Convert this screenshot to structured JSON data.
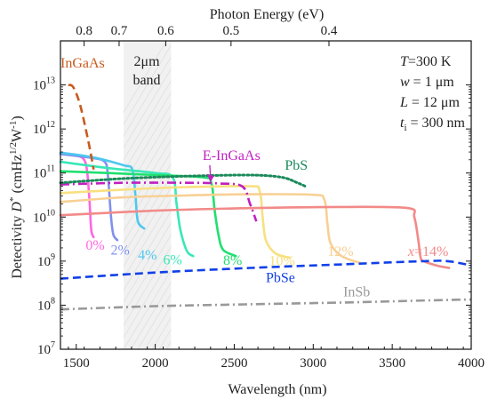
{
  "chart_data": {
    "type": "line",
    "xlabel": "Wavelength (nm)",
    "ylabel": "Detectivity D* (cmHz^1/2W^-1)",
    "ylabel_parts": {
      "pre": "Detectivity ",
      "d": "D",
      "star": "*",
      "mid": " (cmHz",
      "sup1": "1/2",
      "w": "W",
      "sup2": "-1",
      "close": ")"
    },
    "top_xlabel": "Photon Energy (eV)",
    "xlim": [
      1400,
      4000
    ],
    "ylim": [
      10000000.0,
      100000000000000.0
    ],
    "yscale": "log",
    "x_ticks": [
      1500,
      2000,
      2500,
      3000,
      3500,
      4000
    ],
    "x_tick_labels": [
      "1500",
      "2000",
      "2500",
      "3000",
      "3500",
      "4000"
    ],
    "y_ticks": [
      10000000.0,
      100000000.0,
      1000000000.0,
      10000000000.0,
      100000000000.0,
      1000000000000.0,
      10000000000000.0
    ],
    "y_tick_labels": [
      {
        "base": "10",
        "exp": "7"
      },
      {
        "base": "10",
        "exp": "8"
      },
      {
        "base": "10",
        "exp": "9"
      },
      {
        "base": "10",
        "exp": "10"
      },
      {
        "base": "10",
        "exp": "11"
      },
      {
        "base": "10",
        "exp": "12"
      },
      {
        "base": "10",
        "exp": "13"
      }
    ],
    "top_ticks_ev": [
      0.8,
      0.7,
      0.6,
      0.5,
      0.4
    ],
    "top_tick_labels": [
      "0.8",
      "0.7",
      "0.6",
      "0.5",
      "0.4"
    ],
    "band": {
      "x": [
        1800,
        2100
      ],
      "label_lines": [
        "2μm",
        "band"
      ]
    },
    "params": [
      {
        "sym": "T",
        "rest": "=300 K"
      },
      {
        "sym": "w",
        "rest": " = 1 μm"
      },
      {
        "sym": "L",
        "rest": " = 12 μm"
      },
      {
        "sym": "t",
        "sub": "i",
        "rest": " = 300 nm"
      }
    ],
    "series": [
      {
        "name": "0%",
        "color": "#ff66e0",
        "style": "solid",
        "x": [
          1400,
          1500,
          1550,
          1570,
          1585,
          1595,
          1610
        ],
        "y": [
          280000000000.0,
          250000000000.0,
          200000000000.0,
          100000000000.0,
          20000000000.0,
          5000000000.0,
          3500000000.0
        ],
        "label": {
          "text": "0%",
          "x": 1560,
          "y": 1800000000.0
        }
      },
      {
        "name": "2%",
        "color": "#8090ee",
        "style": "solid",
        "x": [
          1400,
          1600,
          1680,
          1700,
          1720,
          1735,
          1760
        ],
        "y": [
          270000000000.0,
          220000000000.0,
          180000000000.0,
          90000000000.0,
          10000000000.0,
          4000000000.0,
          3000000000.0
        ],
        "label": {
          "text": "2%",
          "x": 1718,
          "y": 1400000000.0
        }
      },
      {
        "name": "4%",
        "color": "#4ec8f0",
        "style": "solid",
        "x": [
          1400,
          1600,
          1800,
          1855,
          1875,
          1890,
          1930
        ],
        "y": [
          290000000000.0,
          230000000000.0,
          150000000000.0,
          120000000000.0,
          30000000000.0,
          8000000000.0,
          5500000000.0
        ],
        "label": {
          "text": "4%",
          "x": 1890,
          "y": 1100000000.0
        }
      },
      {
        "name": "6%",
        "color": "#38e8b8",
        "style": "solid",
        "x": [
          1400,
          1700,
          2000,
          2110,
          2135,
          2160,
          2200,
          2240
        ],
        "y": [
          180000000000.0,
          130000000000.0,
          100000000000.0,
          80000000000.0,
          20000000000.0,
          5000000000.0,
          1700000000.0,
          1300000000.0
        ],
        "label": {
          "text": "6%",
          "x": 2050,
          "y": 850000000.0
        }
      },
      {
        "name": "8%",
        "color": "#20e070",
        "style": "solid",
        "x": [
          1400,
          1700,
          2000,
          2300,
          2355,
          2375,
          2400,
          2430,
          2510
        ],
        "y": [
          110000000000.0,
          100000000000.0,
          90000000000.0,
          80000000000.0,
          60000000000.0,
          15000000000.0,
          4000000000.0,
          1800000000.0,
          1300000000.0
        ],
        "label": {
          "text": "8%",
          "x": 2430,
          "y": 820000000.0
        }
      },
      {
        "name": "10%",
        "color": "#f8e080",
        "style": "solid",
        "x": [
          1400,
          1800,
          2200,
          2600,
          2660,
          2680,
          2700,
          2760,
          2850
        ],
        "y": [
          35000000000.0,
          42000000000.0,
          48000000000.0,
          50000000000.0,
          40000000000.0,
          10000000000.0,
          3000000000.0,
          1500000000.0,
          1200000000.0
        ],
        "label": {
          "text": "10%",
          "x": 2720,
          "y": 800000000.0
        }
      },
      {
        "name": "12%",
        "color": "#f8d094",
        "style": "solid",
        "x": [
          1400,
          1800,
          2200,
          2600,
          3000,
          3070,
          3090,
          3110,
          3180,
          3300
        ],
        "y": [
          22000000000.0,
          28000000000.0,
          31000000000.0,
          33000000000.0,
          32000000000.0,
          25000000000.0,
          7000000000.0,
          2500000000.0,
          1300000000.0,
          900000000.0
        ],
        "label": {
          "text": "12%",
          "x": 3090,
          "y": 1300000000.0
        }
      },
      {
        "name": "x=14%",
        "color": "#f28a88",
        "style": "solid",
        "x": [
          1400,
          2000,
          2600,
          3200,
          3600,
          3640,
          3665,
          3680,
          3700,
          3780,
          3860
        ],
        "y": [
          11000000000.0,
          14000000000.0,
          16000000000.0,
          17000000000.0,
          16000000000.0,
          10000000000.0,
          3000000000.0,
          1200000000.0,
          1000000000.0,
          800000000.0,
          700000000.0
        ],
        "label": {
          "text": "x=14%",
          "x": 3600,
          "y": 1300000000.0
        }
      },
      {
        "name": "InGaAs",
        "color": "#c85a1e",
        "style": "dash",
        "x": [
          1450,
          1480,
          1520,
          1560,
          1590,
          1610
        ],
        "y": [
          10000000000000.0,
          9000000000000.0,
          4000000000000.0,
          1000000000000.0,
          300000000000.0,
          120000000000.0
        ],
        "label": {
          "text": "InGaAs",
          "x": 1400,
          "y": 25000000000000.0
        }
      },
      {
        "name": "E-InGaAs",
        "color": "#c020c0",
        "style": "dashdot",
        "x": [
          1400,
          1800,
          2200,
          2400,
          2550,
          2600,
          2640
        ],
        "y": [
          55000000000.0,
          60000000000.0,
          60000000000.0,
          58000000000.0,
          50000000000.0,
          20000000000.0,
          8000000000.0
        ],
        "label": {
          "text": "E-InGaAs",
          "x": 2300,
          "y": 200000000000.0
        }
      },
      {
        "name": "PbS",
        "color": "#1a8a5a",
        "style": "dot",
        "x": [
          1400,
          1800,
          2200,
          2600,
          2800,
          2900,
          2950
        ],
        "y": [
          60000000000.0,
          75000000000.0,
          85000000000.0,
          90000000000.0,
          80000000000.0,
          60000000000.0,
          50000000000.0
        ],
        "label": {
          "text": "PbS",
          "x": 2820,
          "y": 120000000000.0
        }
      },
      {
        "name": "PbSe",
        "color": "#1040e8",
        "style": "dash",
        "x": [
          1400,
          2000,
          2600,
          3200,
          3700,
          3850,
          4000
        ],
        "y": [
          400000000.0,
          550000000.0,
          700000000.0,
          850000000.0,
          1000000000.0,
          1000000000.0,
          800000000.0
        ],
        "label": {
          "text": "PbSe",
          "x": 2700,
          "y": 330000000.0
        }
      },
      {
        "name": "InSb",
        "color": "#999999",
        "style": "dashdot",
        "x": [
          1400,
          2000,
          2600,
          3200,
          3600,
          4000
        ],
        "y": [
          80000000.0,
          95000000.0,
          105000000.0,
          115000000.0,
          125000000.0,
          135000000.0
        ],
        "label": {
          "text": "InSb",
          "x": 3190,
          "y": 160000000.0
        }
      }
    ]
  }
}
